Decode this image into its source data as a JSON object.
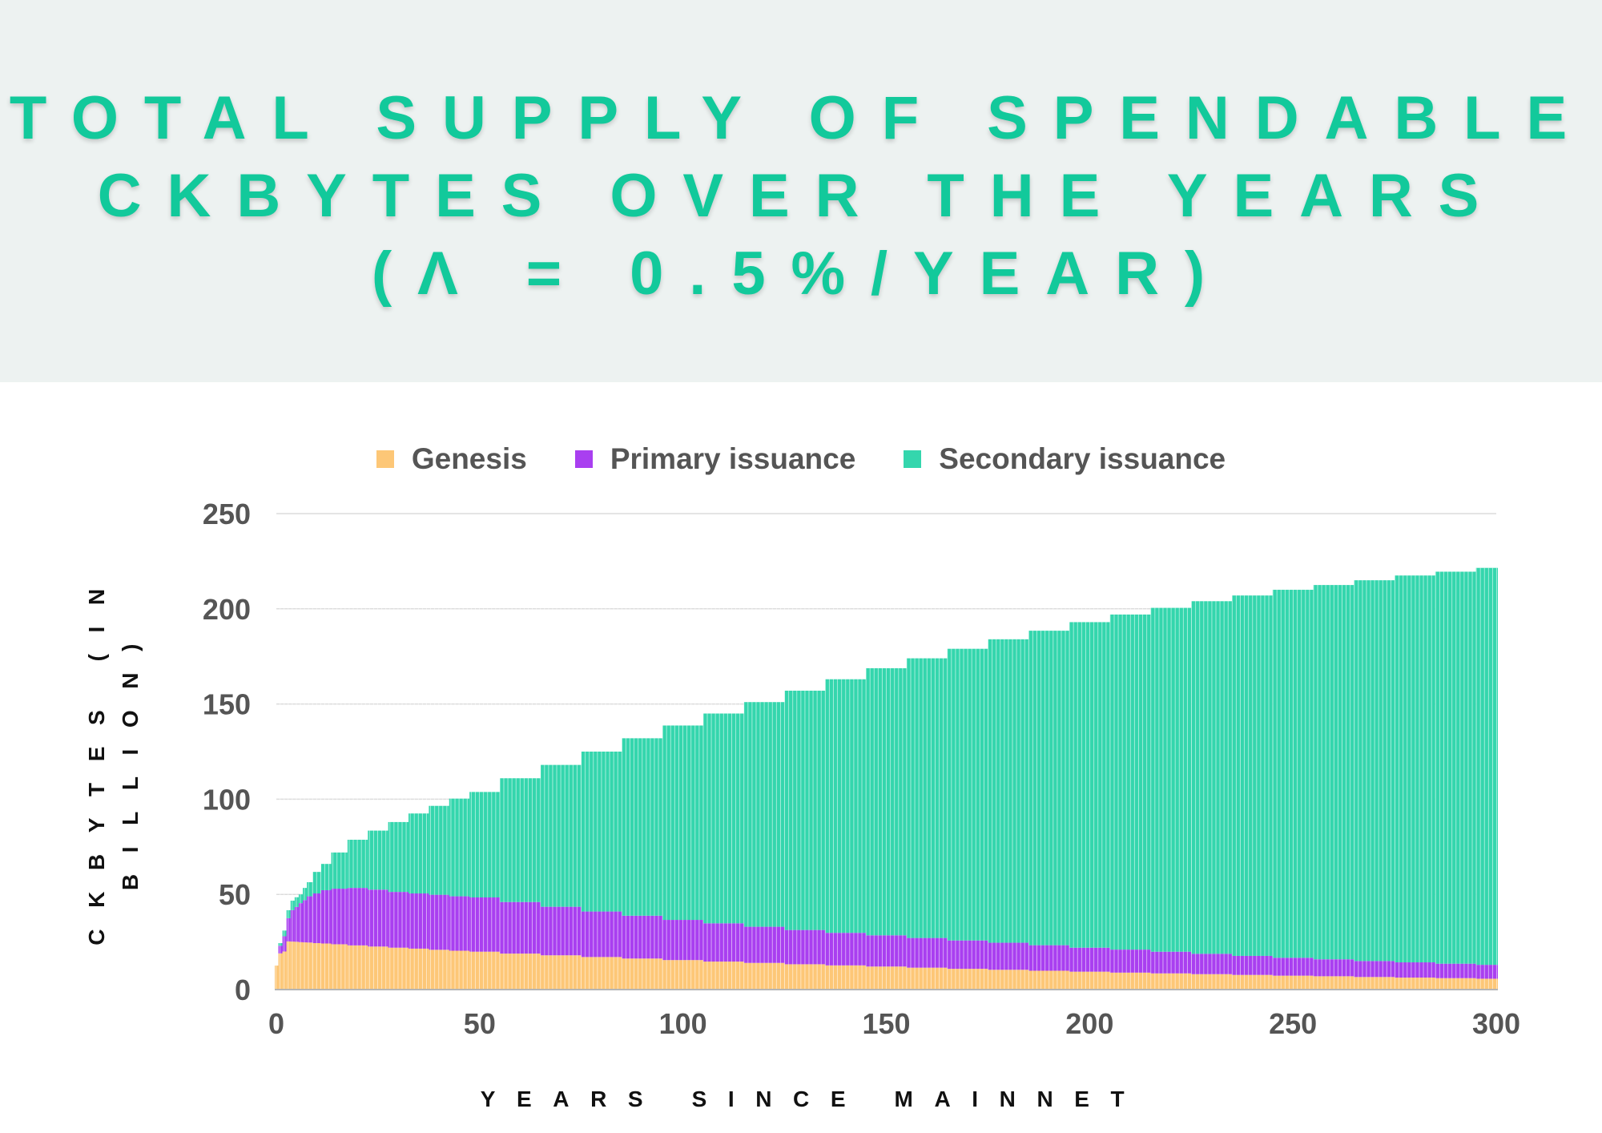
{
  "title_lines": [
    "TOTAL SUPPLY OF SPENDABLE",
    "CKBYTES OVER THE YEARS",
    "(Λ = 0.5%/YEAR)"
  ],
  "chart_data": {
    "type": "bar",
    "stacked": true,
    "title": "TOTAL SUPPLY OF SPENDABLE CKBYTES OVER THE YEARS (Λ = 0.5%/YEAR)",
    "xlabel": "YEARS SINCE MAINNET",
    "ylabel": "CKBYTES (IN BILLION)",
    "xlim": [
      0,
      300
    ],
    "ylim": [
      0,
      250
    ],
    "xticks": [
      "0",
      "50",
      "100",
      "150",
      "200",
      "250",
      "300"
    ],
    "yticks": [
      "0",
      "50",
      "100",
      "150",
      "200",
      "250"
    ],
    "grid": true,
    "legend_position": "top",
    "x": [
      0,
      1,
      2,
      3,
      4,
      5,
      6,
      7,
      8,
      10,
      12,
      15,
      20,
      25,
      30,
      35,
      40,
      45,
      50,
      60,
      70,
      80,
      90,
      100,
      110,
      120,
      130,
      140,
      150,
      160,
      170,
      180,
      190,
      200,
      210,
      220,
      230,
      240,
      250,
      260,
      270,
      280,
      290,
      300
    ],
    "series": [
      {
        "name": "Genesis",
        "color": "#fdc777",
        "values": [
          12.6,
          19,
          20,
          25.3,
          25.2,
          25.1,
          24.9,
          24.8,
          24.7,
          24.4,
          24.2,
          23.8,
          23.2,
          22.6,
          22.0,
          21.5,
          20.9,
          20.4,
          19.9,
          18.9,
          18.0,
          17.1,
          16.3,
          15.5,
          14.7,
          14.0,
          13.3,
          12.7,
          12.1,
          11.5,
          10.9,
          10.4,
          9.9,
          9.4,
          8.9,
          8.5,
          8.1,
          7.7,
          7.3,
          7.0,
          6.6,
          6.3,
          6.0,
          5.7
        ]
      },
      {
        "name": "Primary issuance",
        "color": "#a93ff0",
        "values": [
          0,
          4,
          8,
          12.2,
          16.5,
          18.3,
          20.5,
          22.2,
          24.3,
          26.1,
          28,
          29.2,
          30.2,
          29.9,
          29.3,
          29,
          28.9,
          28.6,
          28.5,
          27.1,
          25.5,
          23.9,
          22.5,
          21.1,
          20.1,
          19,
          18,
          17.1,
          16.4,
          15.6,
          14.9,
          14.2,
          13.4,
          12.6,
          12.1,
          11.4,
          10.7,
          10,
          9.4,
          8.9,
          8.4,
          8,
          7.6,
          7.3
        ]
      },
      {
        "name": "Secondary issuance",
        "color": "#34d6ad",
        "values": [
          0,
          1.4,
          3,
          4.2,
          5,
          5.1,
          4.6,
          6.4,
          7.4,
          11.3,
          13.8,
          19,
          25.3,
          31,
          36.7,
          42,
          46.7,
          51.3,
          55.4,
          65,
          74.5,
          84,
          93.2,
          102.1,
          110.2,
          118,
          125.7,
          133.2,
          140.3,
          146.9,
          153.2,
          159.4,
          165.2,
          171,
          176,
          180.6,
          185.2,
          189.3,
          193.3,
          196.6,
          200,
          203.2,
          205.9,
          208.5
        ]
      }
    ]
  }
}
